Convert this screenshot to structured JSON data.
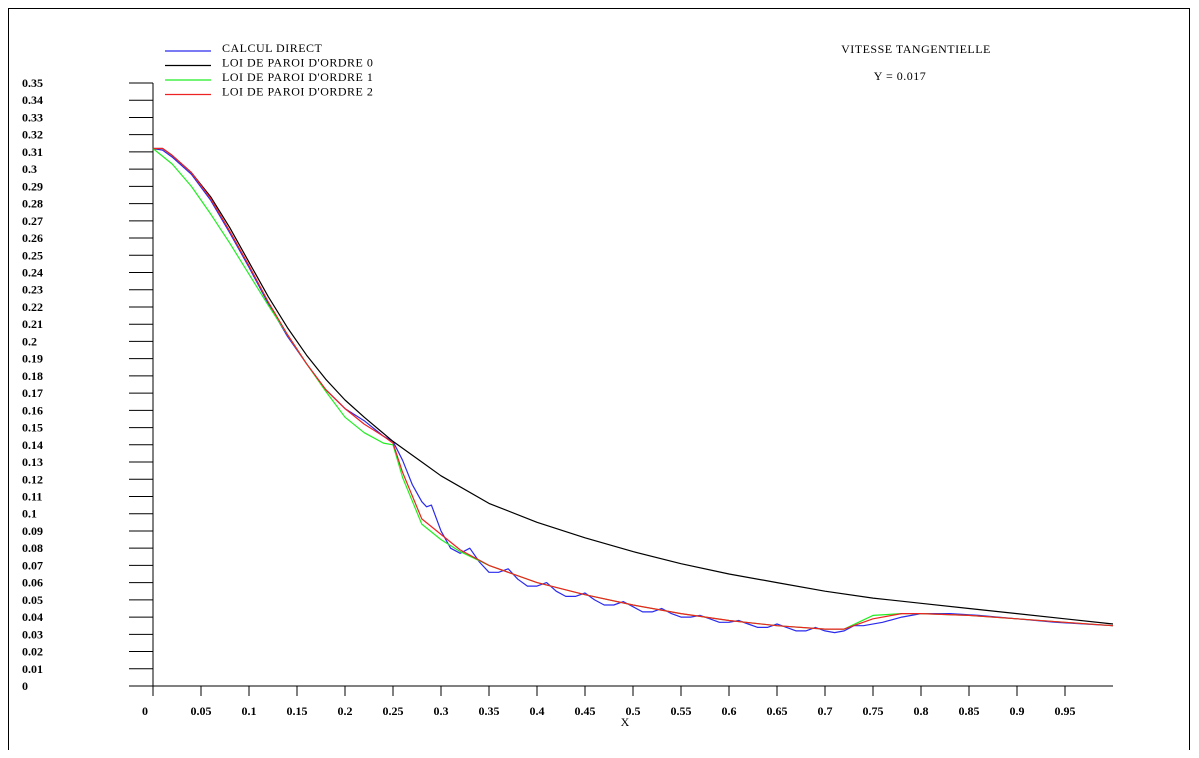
{
  "chart_data": {
    "type": "line",
    "title": "VITESSE TANGENTIELLE",
    "subtitle": "Y = 0.017",
    "xlabel": "X",
    "ylabel": "",
    "xlim": [
      0,
      1.0
    ],
    "ylim": [
      0,
      0.35
    ],
    "x_ticks": [
      "0",
      "0.05",
      "0.1",
      "0.15",
      "0.2",
      "0.25",
      "0.3",
      "0.35",
      "0.4",
      "0.45",
      "0.5",
      "0.55",
      "0.6",
      "0.65",
      "0.7",
      "0.75",
      "0.8",
      "0.85",
      "0.9",
      "0.95"
    ],
    "y_ticks": [
      "0",
      "0.01",
      "0.02",
      "0.03",
      "0.04",
      "0.05",
      "0.06",
      "0.07",
      "0.08",
      "0.09",
      "0.1",
      "0.11",
      "0.12",
      "0.13",
      "0.14",
      "0.15",
      "0.16",
      "0.17",
      "0.18",
      "0.19",
      "0.2",
      "0.21",
      "0.22",
      "0.23",
      "0.24",
      "0.25",
      "0.26",
      "0.27",
      "0.28",
      "0.29",
      "0.3",
      "0.31",
      "0.32",
      "0.33",
      "0.34",
      "0.35"
    ],
    "grid": false,
    "legend_position": "top-left",
    "series": [
      {
        "name": "CALCUL DIRECT",
        "color": "#2a2aee",
        "points": [
          [
            0,
            0.312
          ],
          [
            0.01,
            0.311
          ],
          [
            0.02,
            0.307
          ],
          [
            0.04,
            0.297
          ],
          [
            0.06,
            0.282
          ],
          [
            0.08,
            0.263
          ],
          [
            0.1,
            0.243
          ],
          [
            0.12,
            0.222
          ],
          [
            0.14,
            0.203
          ],
          [
            0.16,
            0.187
          ],
          [
            0.18,
            0.172
          ],
          [
            0.2,
            0.161
          ],
          [
            0.22,
            0.154
          ],
          [
            0.24,
            0.145
          ],
          [
            0.25,
            0.142
          ],
          [
            0.26,
            0.131
          ],
          [
            0.27,
            0.117
          ],
          [
            0.28,
            0.107
          ],
          [
            0.285,
            0.104
          ],
          [
            0.29,
            0.105
          ],
          [
            0.3,
            0.09
          ],
          [
            0.31,
            0.08
          ],
          [
            0.32,
            0.077
          ],
          [
            0.33,
            0.08
          ],
          [
            0.34,
            0.072
          ],
          [
            0.35,
            0.066
          ],
          [
            0.36,
            0.066
          ],
          [
            0.37,
            0.068
          ],
          [
            0.38,
            0.062
          ],
          [
            0.39,
            0.058
          ],
          [
            0.4,
            0.058
          ],
          [
            0.41,
            0.06
          ],
          [
            0.42,
            0.055
          ],
          [
            0.43,
            0.052
          ],
          [
            0.44,
            0.052
          ],
          [
            0.45,
            0.054
          ],
          [
            0.46,
            0.05
          ],
          [
            0.47,
            0.047
          ],
          [
            0.48,
            0.047
          ],
          [
            0.49,
            0.049
          ],
          [
            0.5,
            0.046
          ],
          [
            0.51,
            0.043
          ],
          [
            0.52,
            0.043
          ],
          [
            0.53,
            0.045
          ],
          [
            0.54,
            0.042
          ],
          [
            0.55,
            0.04
          ],
          [
            0.56,
            0.04
          ],
          [
            0.57,
            0.041
          ],
          [
            0.58,
            0.039
          ],
          [
            0.59,
            0.037
          ],
          [
            0.6,
            0.037
          ],
          [
            0.61,
            0.038
          ],
          [
            0.62,
            0.036
          ],
          [
            0.63,
            0.034
          ],
          [
            0.64,
            0.034
          ],
          [
            0.65,
            0.036
          ],
          [
            0.66,
            0.034
          ],
          [
            0.67,
            0.032
          ],
          [
            0.68,
            0.032
          ],
          [
            0.69,
            0.034
          ],
          [
            0.7,
            0.032
          ],
          [
            0.71,
            0.031
          ],
          [
            0.72,
            0.032
          ],
          [
            0.73,
            0.035
          ],
          [
            0.74,
            0.035
          ],
          [
            0.76,
            0.037
          ],
          [
            0.78,
            0.04
          ],
          [
            0.8,
            0.042
          ],
          [
            0.83,
            0.042
          ],
          [
            0.86,
            0.041
          ],
          [
            0.9,
            0.039
          ],
          [
            0.94,
            0.037
          ],
          [
            1.0,
            0.035
          ]
        ]
      },
      {
        "name": "LOI DE PAROI D'ORDRE 0",
        "color": "#000000",
        "points": [
          [
            0,
            0.312
          ],
          [
            0.01,
            0.312
          ],
          [
            0.02,
            0.308
          ],
          [
            0.04,
            0.298
          ],
          [
            0.06,
            0.284
          ],
          [
            0.08,
            0.266
          ],
          [
            0.1,
            0.246
          ],
          [
            0.12,
            0.226
          ],
          [
            0.14,
            0.208
          ],
          [
            0.16,
            0.192
          ],
          [
            0.18,
            0.178
          ],
          [
            0.2,
            0.166
          ],
          [
            0.22,
            0.156
          ],
          [
            0.25,
            0.142
          ],
          [
            0.28,
            0.13
          ],
          [
            0.3,
            0.122
          ],
          [
            0.35,
            0.106
          ],
          [
            0.4,
            0.095
          ],
          [
            0.45,
            0.086
          ],
          [
            0.5,
            0.078
          ],
          [
            0.55,
            0.071
          ],
          [
            0.6,
            0.065
          ],
          [
            0.65,
            0.06
          ],
          [
            0.7,
            0.055
          ],
          [
            0.75,
            0.051
          ],
          [
            0.8,
            0.048
          ],
          [
            0.85,
            0.045
          ],
          [
            0.9,
            0.042
          ],
          [
            0.95,
            0.039
          ],
          [
            1.0,
            0.036
          ]
        ]
      },
      {
        "name": "LOI DE PAROI D'ORDRE 1",
        "color": "#22ee22",
        "points": [
          [
            0,
            0.312
          ],
          [
            0.02,
            0.303
          ],
          [
            0.04,
            0.29
          ],
          [
            0.06,
            0.274
          ],
          [
            0.08,
            0.257
          ],
          [
            0.1,
            0.239
          ],
          [
            0.12,
            0.221
          ],
          [
            0.14,
            0.204
          ],
          [
            0.16,
            0.187
          ],
          [
            0.18,
            0.171
          ],
          [
            0.2,
            0.156
          ],
          [
            0.22,
            0.147
          ],
          [
            0.24,
            0.141
          ],
          [
            0.25,
            0.14
          ],
          [
            0.26,
            0.121
          ],
          [
            0.28,
            0.094
          ],
          [
            0.3,
            0.085
          ],
          [
            0.32,
            0.078
          ],
          [
            0.35,
            0.07
          ],
          [
            0.4,
            0.06
          ],
          [
            0.45,
            0.053
          ],
          [
            0.5,
            0.047
          ],
          [
            0.55,
            0.042
          ],
          [
            0.6,
            0.038
          ],
          [
            0.65,
            0.035
          ],
          [
            0.7,
            0.033
          ],
          [
            0.72,
            0.033
          ],
          [
            0.75,
            0.041
          ],
          [
            0.78,
            0.042
          ],
          [
            0.8,
            0.042
          ],
          [
            0.85,
            0.041
          ],
          [
            0.9,
            0.039
          ],
          [
            0.95,
            0.037
          ],
          [
            1.0,
            0.035
          ]
        ]
      },
      {
        "name": "LOI DE PAROI D'ORDRE 2",
        "color": "#ee2222",
        "points": [
          [
            0,
            0.312
          ],
          [
            0.01,
            0.312
          ],
          [
            0.02,
            0.308
          ],
          [
            0.04,
            0.298
          ],
          [
            0.06,
            0.283
          ],
          [
            0.08,
            0.264
          ],
          [
            0.1,
            0.244
          ],
          [
            0.12,
            0.223
          ],
          [
            0.14,
            0.204
          ],
          [
            0.16,
            0.187
          ],
          [
            0.18,
            0.172
          ],
          [
            0.2,
            0.161
          ],
          [
            0.22,
            0.152
          ],
          [
            0.24,
            0.145
          ],
          [
            0.25,
            0.141
          ],
          [
            0.26,
            0.124
          ],
          [
            0.28,
            0.097
          ],
          [
            0.3,
            0.088
          ],
          [
            0.32,
            0.079
          ],
          [
            0.35,
            0.07
          ],
          [
            0.4,
            0.06
          ],
          [
            0.45,
            0.053
          ],
          [
            0.5,
            0.047
          ],
          [
            0.55,
            0.042
          ],
          [
            0.6,
            0.038
          ],
          [
            0.65,
            0.035
          ],
          [
            0.7,
            0.033
          ],
          [
            0.72,
            0.033
          ],
          [
            0.75,
            0.039
          ],
          [
            0.78,
            0.042
          ],
          [
            0.8,
            0.042
          ],
          [
            0.85,
            0.041
          ],
          [
            0.9,
            0.039
          ],
          [
            0.95,
            0.037
          ],
          [
            1.0,
            0.035
          ]
        ]
      }
    ]
  }
}
